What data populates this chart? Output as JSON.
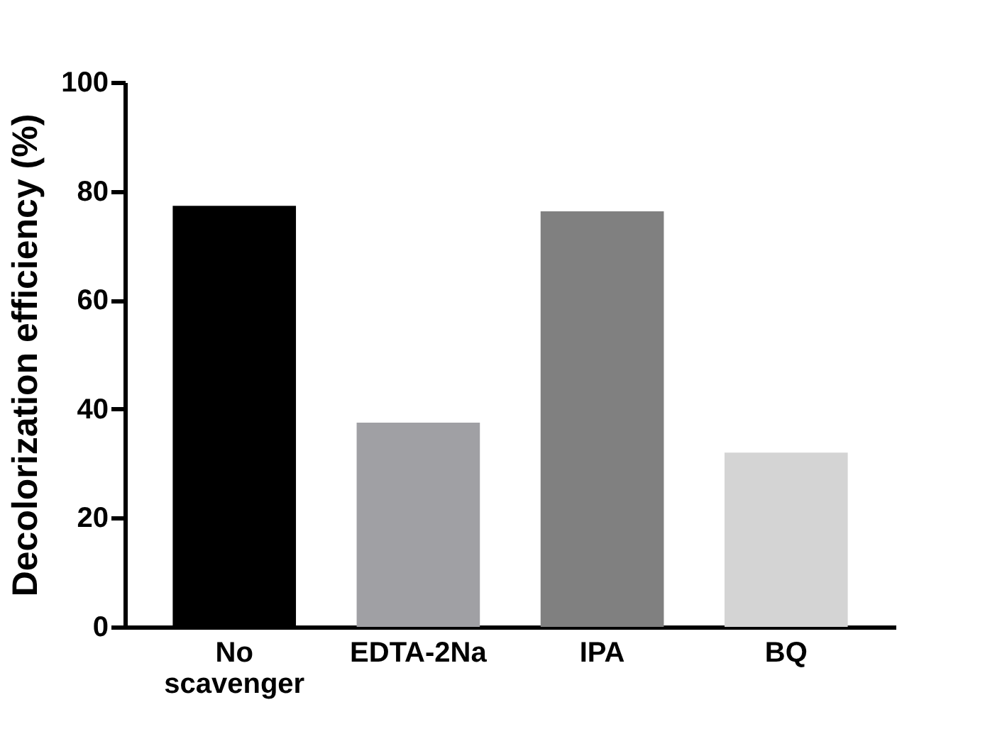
{
  "chart_data": {
    "type": "bar",
    "ylabel": "Decolorization efficiency (%)",
    "categories": [
      "No scavenger",
      "EDTA-2Na",
      "IPA",
      "BQ"
    ],
    "values": [
      77.3,
      37.5,
      76.3,
      32.0
    ],
    "colors": [
      "#000000",
      "#a0a0a4",
      "#808080",
      "#d4d4d4"
    ],
    "ylim": [
      0,
      100
    ],
    "yticks": [
      0,
      20,
      40,
      60,
      80,
      100
    ],
    "grid": false
  }
}
